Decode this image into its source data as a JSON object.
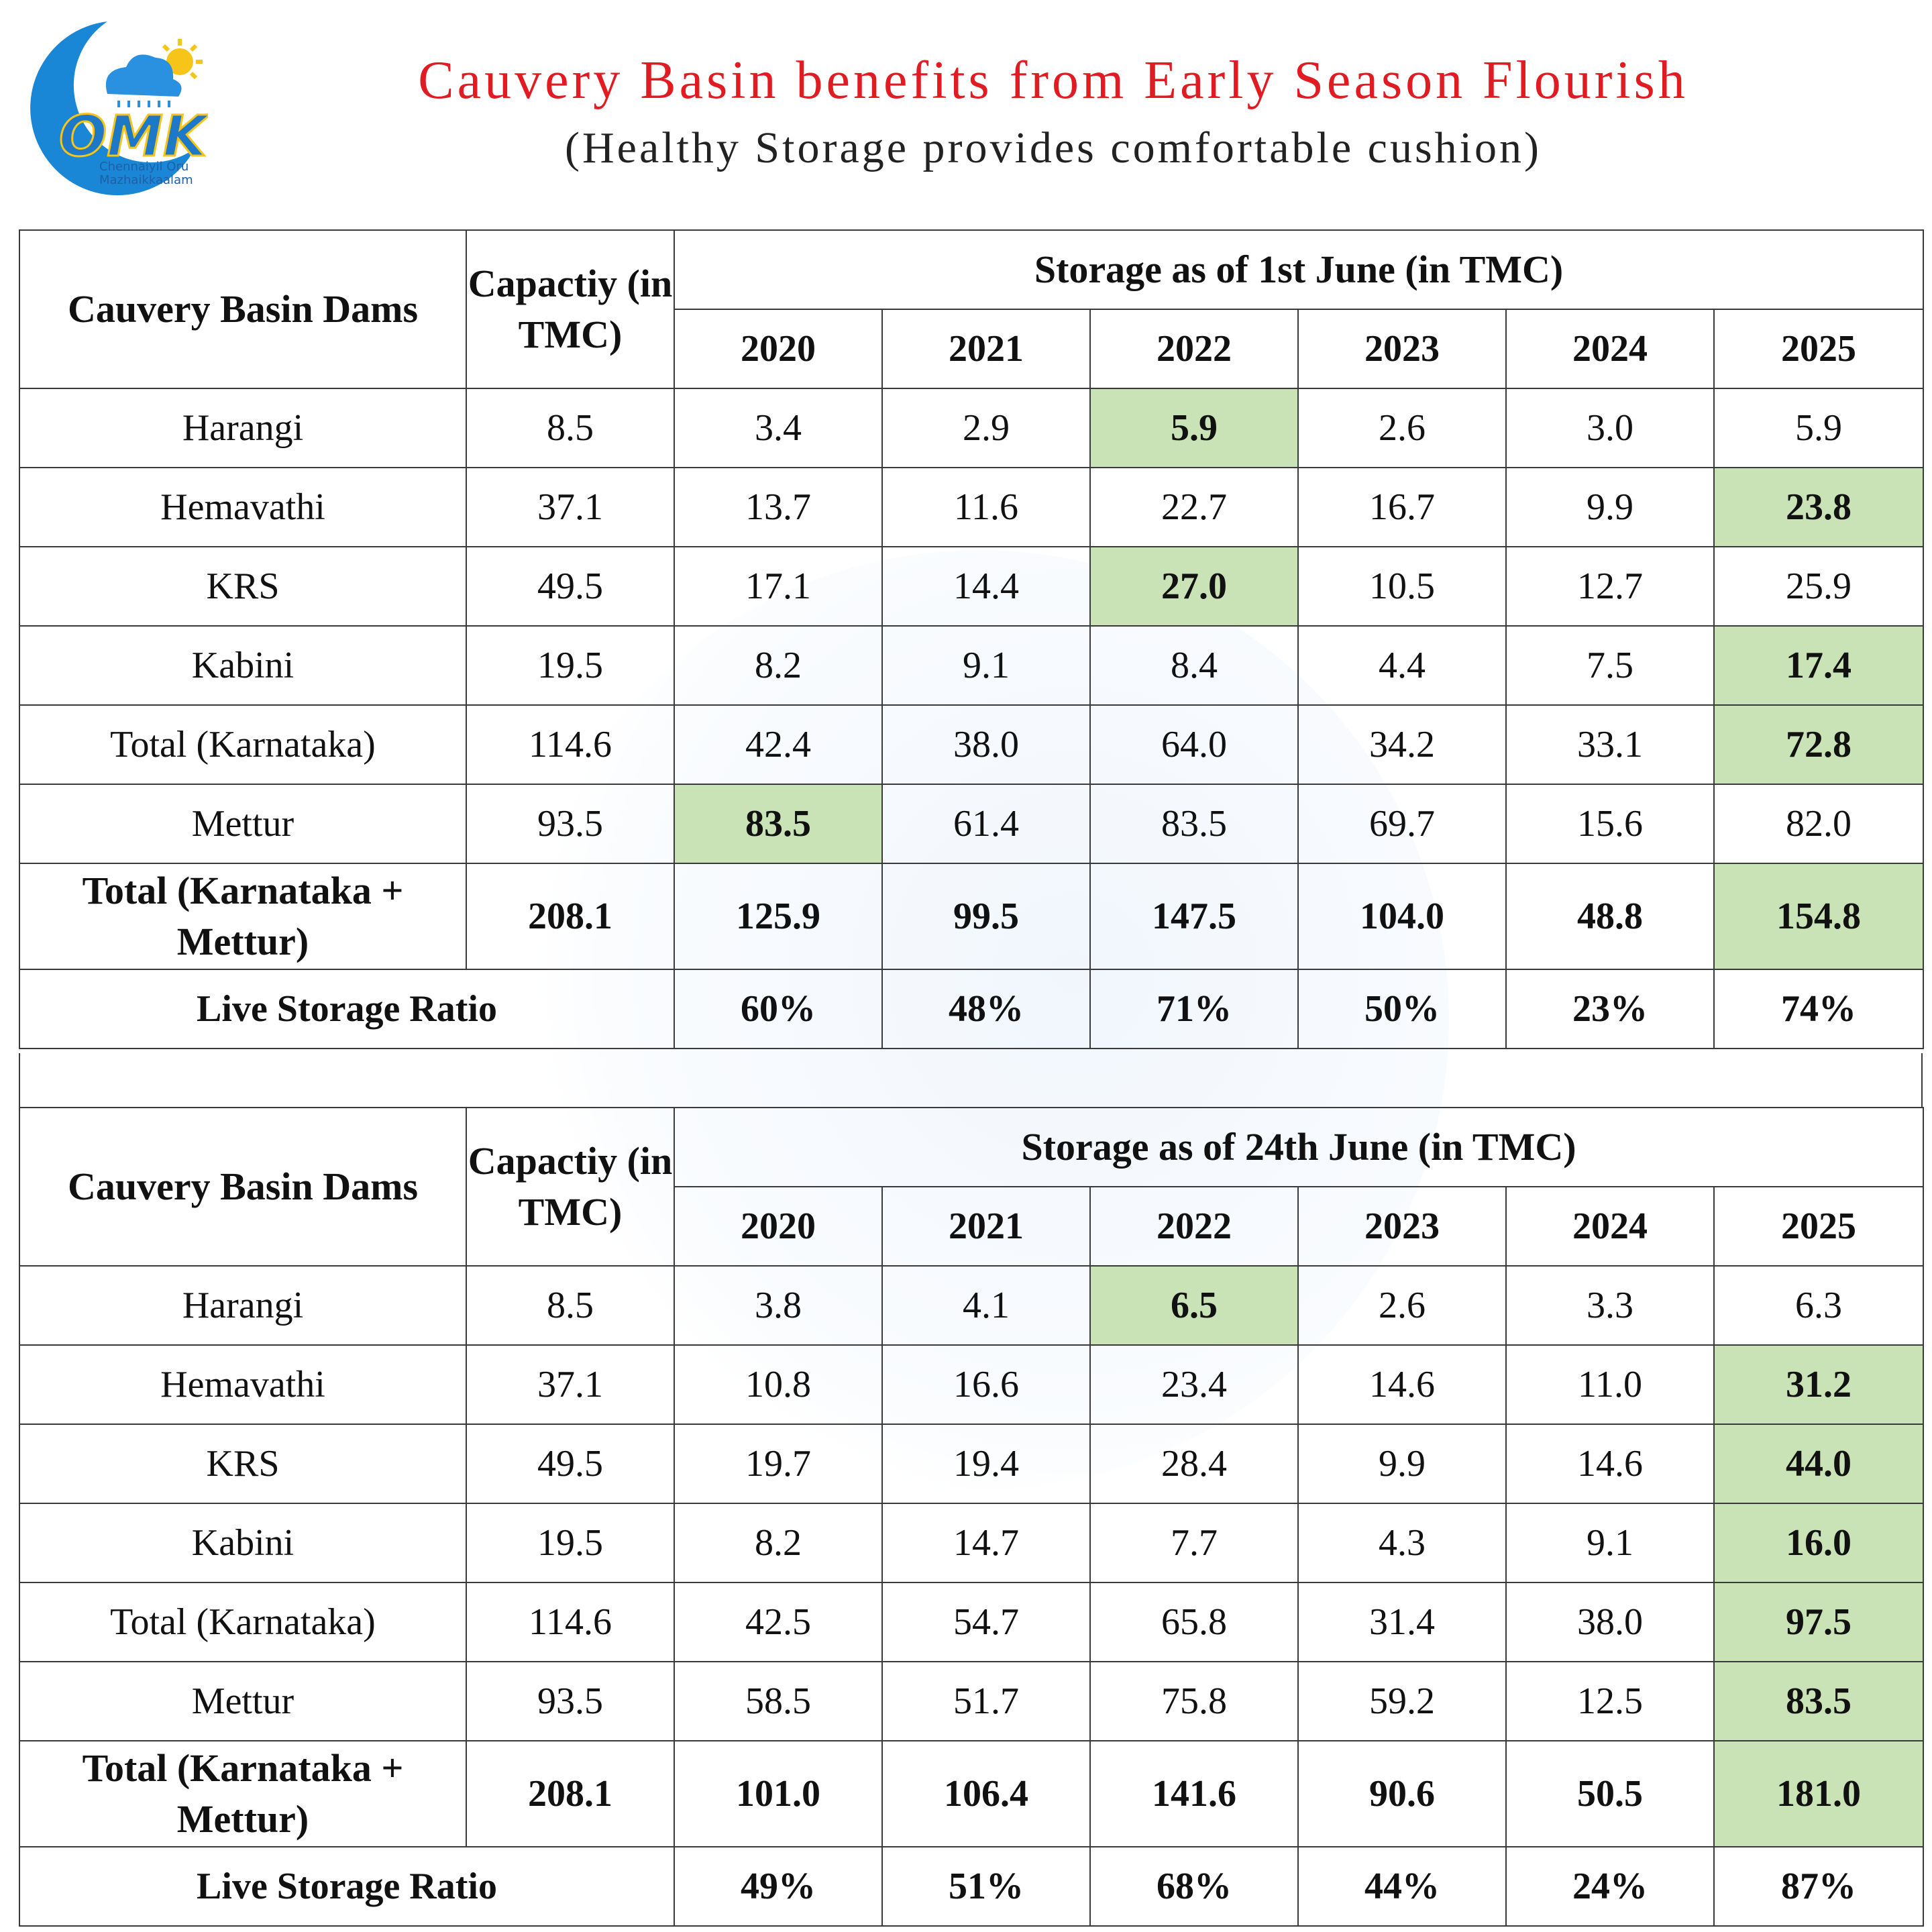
{
  "logo": {
    "icon": "cloud-sun-rain-logo",
    "text": "OMK",
    "line1": "Chennaiyil Oru",
    "line2": "Mazhaikkaalam",
    "colors": {
      "ring": "#1a86d6",
      "sun": "#f7c51a",
      "letters": "#1e78c8"
    }
  },
  "header": {
    "title": "Cauvery Basin benefits from Early Season Flourish",
    "subtitle": "(Healthy Storage provides comfortable cushion)"
  },
  "colors": {
    "title": "#e01b22",
    "highlight": "#c9e3b6",
    "border": "#3a3a3a"
  },
  "tables": [
    {
      "dams_header": "Cauvery Basin Dams",
      "capacity_header": "Capactiy (in TMC)",
      "storage_header": "Storage as of 1st June (in TMC)",
      "years": [
        "2020",
        "2021",
        "2022",
        "2023",
        "2024",
        "2025"
      ],
      "rows": [
        {
          "name": "Harangi",
          "capacity": "8.5",
          "values": [
            "3.4",
            "2.9",
            "5.9",
            "2.6",
            "3.0",
            "5.9"
          ],
          "highlight": 2
        },
        {
          "name": "Hemavathi",
          "capacity": "37.1",
          "values": [
            "13.7",
            "11.6",
            "22.7",
            "16.7",
            "9.9",
            "23.8"
          ],
          "highlight": 5
        },
        {
          "name": "KRS",
          "capacity": "49.5",
          "values": [
            "17.1",
            "14.4",
            "27.0",
            "10.5",
            "12.7",
            "25.9"
          ],
          "highlight": 2
        },
        {
          "name": "Kabini",
          "capacity": "19.5",
          "values": [
            "8.2",
            "9.1",
            "8.4",
            "4.4",
            "7.5",
            "17.4"
          ],
          "highlight": 5
        },
        {
          "name": "Total (Karnataka)",
          "capacity": "114.6",
          "values": [
            "42.4",
            "38.0",
            "64.0",
            "34.2",
            "33.1",
            "72.8"
          ],
          "highlight": 5
        },
        {
          "name": "Mettur",
          "capacity": "93.5",
          "values": [
            "83.5",
            "61.4",
            "83.5",
            "69.7",
            "15.6",
            "82.0"
          ],
          "highlight": 0
        }
      ],
      "total": {
        "name_line1": "Total (Karnataka +",
        "name_line2": "Mettur)",
        "capacity": "208.1",
        "values": [
          "125.9",
          "99.5",
          "147.5",
          "104.0",
          "48.8",
          "154.8"
        ],
        "highlight": 5
      },
      "ratio": {
        "label": "Live Storage Ratio",
        "values": [
          "60%",
          "48%",
          "71%",
          "50%",
          "23%",
          "74%"
        ]
      }
    },
    {
      "dams_header": "Cauvery Basin Dams",
      "capacity_header": "Capactiy (in TMC)",
      "storage_header": "Storage as of 24th June (in TMC)",
      "years": [
        "2020",
        "2021",
        "2022",
        "2023",
        "2024",
        "2025"
      ],
      "rows": [
        {
          "name": "Harangi",
          "capacity": "8.5",
          "values": [
            "3.8",
            "4.1",
            "6.5",
            "2.6",
            "3.3",
            "6.3"
          ],
          "highlight": 2
        },
        {
          "name": "Hemavathi",
          "capacity": "37.1",
          "values": [
            "10.8",
            "16.6",
            "23.4",
            "14.6",
            "11.0",
            "31.2"
          ],
          "highlight": 5
        },
        {
          "name": "KRS",
          "capacity": "49.5",
          "values": [
            "19.7",
            "19.4",
            "28.4",
            "9.9",
            "14.6",
            "44.0"
          ],
          "highlight": 5
        },
        {
          "name": "Kabini",
          "capacity": "19.5",
          "values": [
            "8.2",
            "14.7",
            "7.7",
            "4.3",
            "9.1",
            "16.0"
          ],
          "highlight": 5
        },
        {
          "name": "Total (Karnataka)",
          "capacity": "114.6",
          "values": [
            "42.5",
            "54.7",
            "65.8",
            "31.4",
            "38.0",
            "97.5"
          ],
          "highlight": 5
        },
        {
          "name": "Mettur",
          "capacity": "93.5",
          "values": [
            "58.5",
            "51.7",
            "75.8",
            "59.2",
            "12.5",
            "83.5"
          ],
          "highlight": 5
        }
      ],
      "total": {
        "name_line1": "Total (Karnataka +",
        "name_line2": "Mettur)",
        "capacity": "208.1",
        "values": [
          "101.0",
          "106.4",
          "141.6",
          "90.6",
          "50.5",
          "181.0"
        ],
        "highlight": 5
      },
      "ratio": {
        "label": "Live Storage Ratio",
        "values": [
          "49%",
          "51%",
          "68%",
          "44%",
          "24%",
          "87%"
        ]
      }
    }
  ]
}
